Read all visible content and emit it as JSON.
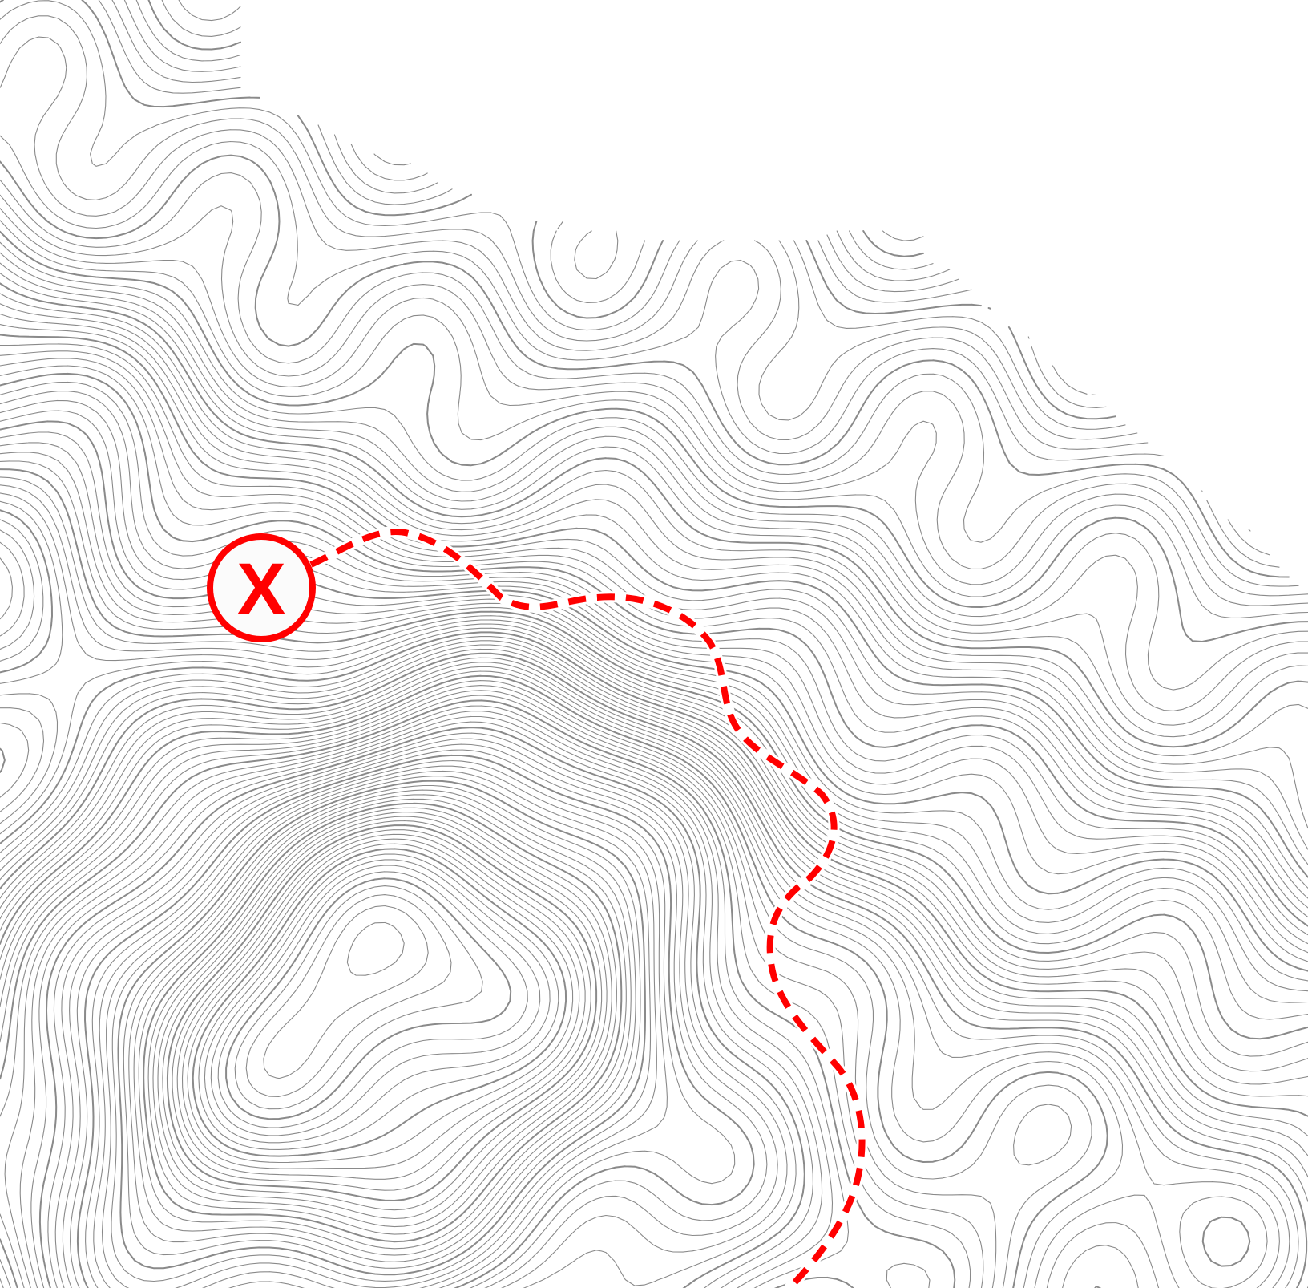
{
  "map": {
    "style": "topographic contour lines",
    "background_color": "#ffffff",
    "contour_color": "#8a8a8a",
    "route_color": "#ff0000"
  },
  "marker": {
    "label": "X",
    "icon": "x-marker-icon",
    "fill": "#fbfbfb",
    "stroke": "#ff0000"
  },
  "route": {
    "style": "dashed",
    "icon": "trail-route"
  }
}
